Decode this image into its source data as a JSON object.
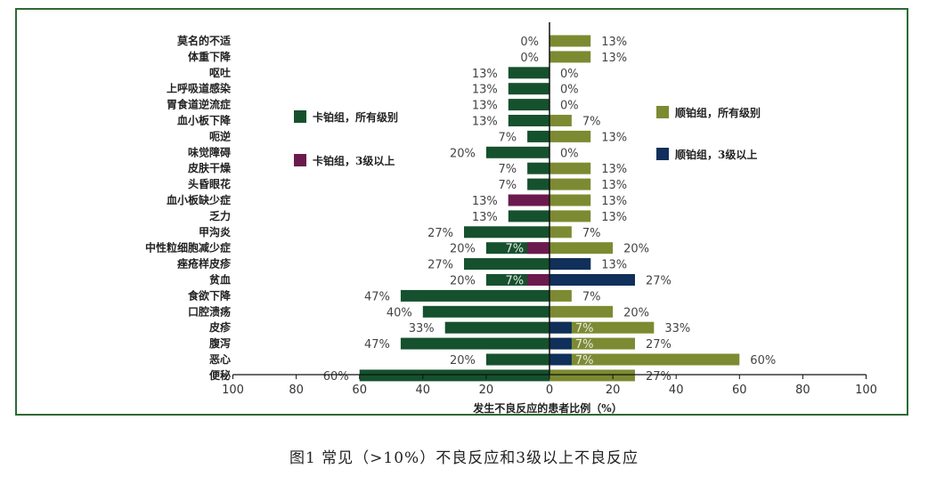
{
  "caption": "图1 常见（>10%）不良反应和3级以上不良反应",
  "chart_data": {
    "type": "bar",
    "orientation": "horizontal",
    "layout": "diverging",
    "xlabel": "发生不良反应的患者比例（%）",
    "xlim": [
      -100,
      100
    ],
    "xticks": [
      -100,
      -80,
      -60,
      -40,
      -20,
      0,
      20,
      40,
      60,
      80,
      100
    ],
    "xtick_labels": [
      "100",
      "80",
      "60",
      "40",
      "20",
      "0",
      "20",
      "40",
      "60",
      "80",
      "100"
    ],
    "value_suffix": "%",
    "grid": false,
    "categories": [
      "莫名的不适",
      "体重下降",
      "呕吐",
      "上呼吸道感染",
      "胃食道逆流症",
      "血小板下降",
      "呃逆",
      "味觉障碍",
      "皮肤干燥",
      "头昏眼花",
      "血小板缺少症",
      "乏力",
      "甲沟炎",
      "中性粒细胞减少症",
      "痤疮样皮疹",
      "贫血",
      "食欲下降",
      "口腔溃疡",
      "皮疹",
      "腹泻",
      "恶心",
      "便秘"
    ],
    "series": [
      {
        "name": "卡铂组，所有级别",
        "side": "left",
        "color": "#15512d",
        "values": [
          0,
          0,
          13,
          13,
          13,
          13,
          7,
          20,
          7,
          7,
          13,
          13,
          27,
          20,
          27,
          20,
          47,
          40,
          33,
          47,
          20,
          60
        ]
      },
      {
        "name": "卡铂组，3级以上",
        "side": "left",
        "color": "#6b1a4e",
        "values": [
          0,
          0,
          0,
          0,
          0,
          0,
          0,
          0,
          0,
          0,
          13,
          0,
          0,
          7,
          0,
          7,
          0,
          0,
          0,
          0,
          0,
          0
        ]
      },
      {
        "name": "顺铂组，所有级别",
        "side": "right",
        "color": "#7c8b32",
        "values": [
          13,
          13,
          0,
          0,
          0,
          7,
          13,
          0,
          13,
          13,
          13,
          13,
          7,
          20,
          13,
          27,
          7,
          20,
          33,
          27,
          60,
          27
        ]
      },
      {
        "name": "顺铂组，3级以上",
        "side": "right",
        "color": "#102f5a",
        "values": [
          0,
          0,
          0,
          0,
          0,
          0,
          0,
          0,
          0,
          0,
          0,
          0,
          0,
          0,
          13,
          27,
          0,
          0,
          7,
          7,
          7,
          0
        ]
      }
    ]
  }
}
